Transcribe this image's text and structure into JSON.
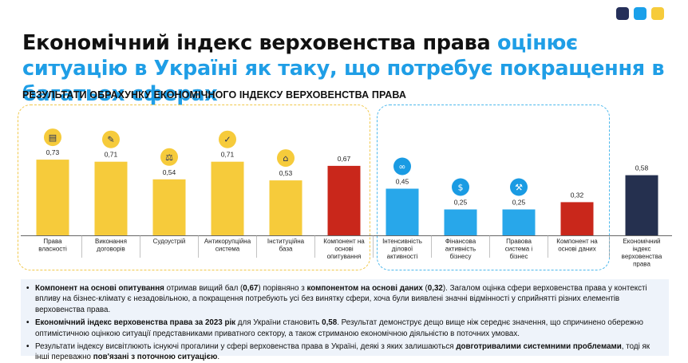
{
  "colors": {
    "yellow": "#f6cb3b",
    "blue": "#28a7ea",
    "red": "#c9271b",
    "navy": "#25304f",
    "accent": "#1f9ee6",
    "dot1": "#26305a",
    "dot2": "#1aa0ea",
    "dot3": "#f6cb3b",
    "box_yellow": "#f1c84a",
    "box_blue": "#4cb8ec"
  },
  "headline": {
    "part1": "Економічний індекс верховенства права ",
    "part2": "оцінює ситуацію в Україні як таку, що потребує покращення в багатьох сферах"
  },
  "subtitle": "РЕЗУЛЬТАТИ ОБРАХУНКУ ЕКОНОМІЧНОГО ІНДЕКСУ ВЕРХОВЕНСТВА ПРАВА",
  "chart_data": {
    "type": "bar",
    "categories": [
      "Права власності",
      "Виконання договорів",
      "Судоустрій",
      "Антикорупційна система",
      "Інституційна база",
      "Компонент на основі опитування",
      "Інтенсивність ділової активності",
      "Фінансова активність бізнесу",
      "Правова система і бізнес",
      "Компонент на основі даних",
      "Економічний індекс верховенства права"
    ],
    "values": [
      0.73,
      0.71,
      0.54,
      0.71,
      0.53,
      0.67,
      0.45,
      0.25,
      0.25,
      0.32,
      0.58
    ],
    "value_labels": [
      "0,73",
      "0,71",
      "0,54",
      "0,71",
      "0,53",
      "0,67",
      "0,45",
      "0,25",
      "0,25",
      "0,32",
      "0,58"
    ],
    "bar_colors": [
      "yellow",
      "yellow",
      "yellow",
      "yellow",
      "yellow",
      "red",
      "blue",
      "blue",
      "blue",
      "red",
      "navy"
    ],
    "icons": [
      "factory-icon",
      "contract-icon",
      "scales-icon",
      "anticorruption-icon",
      "institution-icon",
      null,
      "handshake-icon",
      "finance-icon",
      "gavel-icon",
      null,
      null
    ],
    "ylim": [
      0,
      1
    ],
    "groups": [
      {
        "name": "",
        "color": "yellow",
        "members": [
          0,
          1,
          2,
          3,
          4,
          5
        ]
      },
      {
        "name": "",
        "color": "blue",
        "members": [
          6,
          7,
          8,
          9
        ]
      }
    ]
  },
  "notes": [
    {
      "parts": [
        {
          "b": true,
          "t": "Компонент на основі опитування"
        },
        {
          "b": false,
          "t": " отримав вищий бал ("
        },
        {
          "b": true,
          "t": "0,67"
        },
        {
          "b": false,
          "t": ") порівняно з "
        },
        {
          "b": true,
          "t": "компонентом на основі даних"
        },
        {
          "b": false,
          "t": " ("
        },
        {
          "b": true,
          "t": "0,32"
        },
        {
          "b": false,
          "t": "). Загалом оцінка сфери верховенства права у контексті впливу на бізнес-клімату є незадовільною, а покращення потребують усі без винятку сфери, хоча були виявлені значні відмінності у сприйнятті різних елементів верховенства права."
        }
      ]
    },
    {
      "parts": [
        {
          "b": true,
          "t": "Економічний індекс верховенства права за 2023 рік"
        },
        {
          "b": false,
          "t": " для України становить "
        },
        {
          "b": true,
          "t": "0,58"
        },
        {
          "b": false,
          "t": ". Результат демонструє дещо вище ніж середнє значення, що спричинено обережно оптимістичною оцінкою ситуації представниками приватного сектору, а також стриманою економічною діяльністю в поточних умовах."
        }
      ]
    },
    {
      "parts": [
        {
          "b": false,
          "t": "Результати індексу висвітлюють існуючі прогалини у сфері верховенства права в Україні, деякі з яких залишаються "
        },
        {
          "b": true,
          "t": "довготривалими системними проблемами"
        },
        {
          "b": false,
          "t": ", тоді як інші переважно "
        },
        {
          "b": true,
          "t": "пов'язані з поточною ситуацією"
        },
        {
          "b": false,
          "t": "."
        }
      ]
    }
  ]
}
